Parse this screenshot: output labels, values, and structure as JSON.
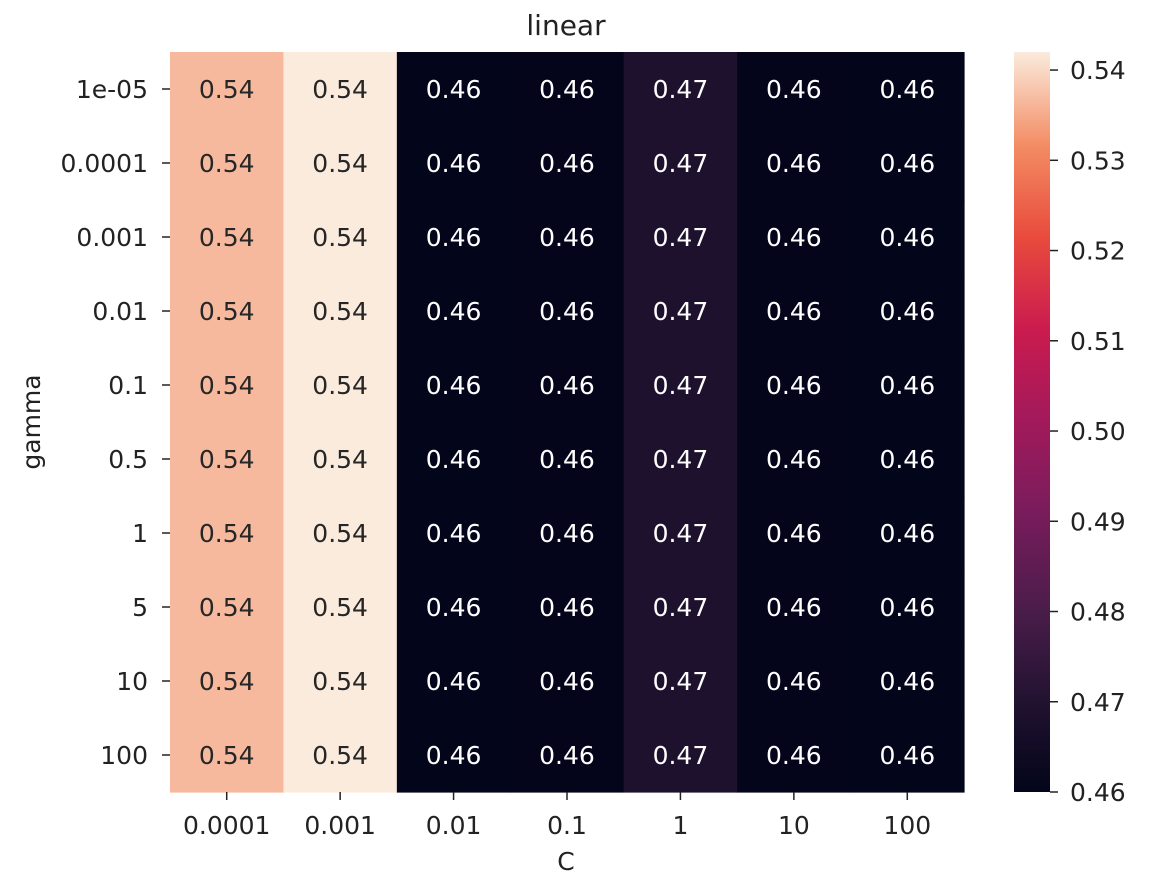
{
  "chart_data": {
    "type": "heatmap",
    "title": "linear",
    "xlabel": "C",
    "ylabel": "gamma",
    "x_categories": [
      "0.0001",
      "0.001",
      "0.01",
      "0.1",
      "1",
      "10",
      "100"
    ],
    "y_categories": [
      "1e-05",
      "0.0001",
      "0.001",
      "0.01",
      "0.1",
      "0.5",
      "1",
      "5",
      "10",
      "100"
    ],
    "column_values": [
      0.5366,
      0.542,
      0.46,
      0.4602,
      0.4688,
      0.4602,
      0.46
    ],
    "annotations": {
      "0.0001": "0.54",
      "0.001": "0.54",
      "0.01": "0.46",
      "0.1": "0.46",
      "1": "0.47",
      "10": "0.46",
      "100": "0.46"
    },
    "colorbar": {
      "min": 0.46,
      "max": 0.542,
      "ticks": [
        "0.46",
        "0.47",
        "0.48",
        "0.49",
        "0.50",
        "0.51",
        "0.52",
        "0.53",
        "0.54"
      ]
    },
    "colormap": "rocket"
  }
}
